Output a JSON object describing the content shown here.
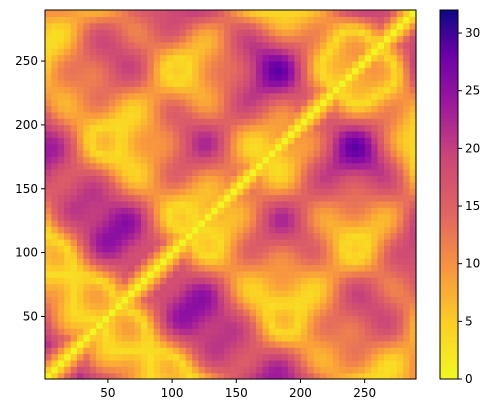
{
  "chart_data": {
    "type": "heatmap",
    "title": "",
    "xlabel": "",
    "ylabel": "",
    "x_range": [
      1,
      290
    ],
    "y_range": [
      1,
      290
    ],
    "x_ticks": [
      50,
      100,
      150,
      200,
      250
    ],
    "y_ticks": [
      50,
      100,
      150,
      200,
      250
    ],
    "colormap": "plasma (reversed: 0 = yellow, 32 = dark purple)",
    "colorbar": {
      "range": [
        0,
        32
      ],
      "ticks": [
        0,
        5,
        10,
        15,
        20,
        25,
        30
      ],
      "low_color": "#f0f921",
      "high_color": "#0d0887"
    },
    "description_of_values": "symmetric distance matrix; diagonal is 0",
    "value_range": [
      0,
      32
    ]
  }
}
